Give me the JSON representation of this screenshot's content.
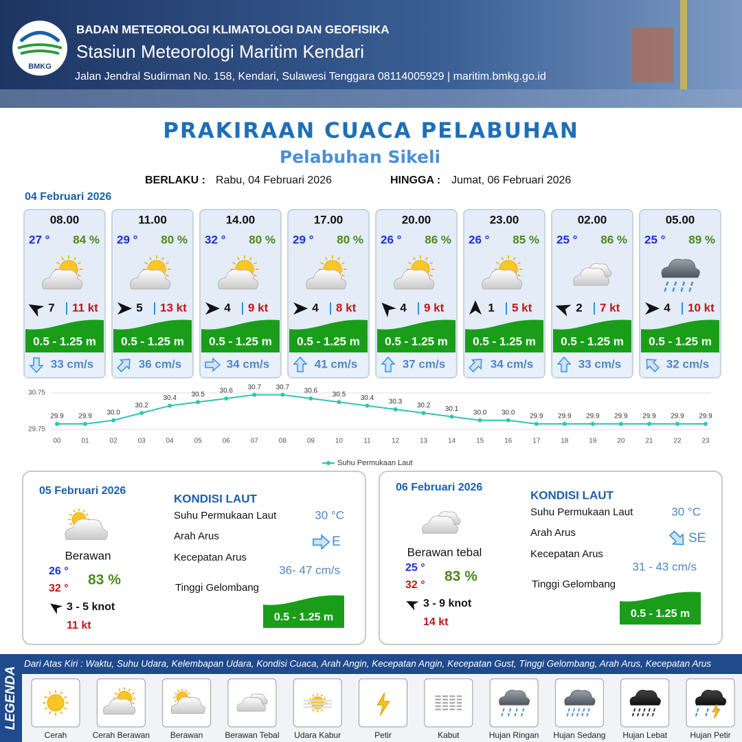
{
  "header": {
    "logo": "BMKG",
    "agency": "BADAN METEOROLOGI KLIMATOLOGI DAN GEOFISIKA",
    "station": "Stasiun Meteorologi Maritim Kendari",
    "address": "Jalan Jendral Sudirman No. 158, Kendari, Sulawesi Tenggara  08114005929 | maritim.bmkg.go.id"
  },
  "title": "PRAKIRAAN CUACA PELABUHAN",
  "subtitle": "Pelabuhan Sikeli",
  "validity": {
    "from_label": "BERLAKU :",
    "from": "Rabu, 04 Februari 2026",
    "to_label": "HINGGA :",
    "to": "Jumat, 06 Februari 2026"
  },
  "forecast": {
    "date": "04 Februari 2026",
    "slots": [
      {
        "time": "08.00",
        "temp": "27 °",
        "humidity": "84 %",
        "wind": "7",
        "gust": "11 kt",
        "wave": "0.5 - 1.25 m",
        "current": "33 cm/s"
      },
      {
        "time": "11.00",
        "temp": "29 °",
        "humidity": "80 %",
        "wind": "5",
        "gust": "13 kt",
        "wave": "0.5 - 1.25 m",
        "current": "36 cm/s"
      },
      {
        "time": "14.00",
        "temp": "32 °",
        "humidity": "80 %",
        "wind": "4",
        "gust": "9 kt",
        "wave": "0.5 - 1.25 m",
        "current": "34 cm/s"
      },
      {
        "time": "17.00",
        "temp": "29 °",
        "humidity": "80 %",
        "wind": "4",
        "gust": "8 kt",
        "wave": "0.5 - 1.25 m",
        "current": "41 cm/s"
      },
      {
        "time": "20.00",
        "temp": "26 °",
        "humidity": "86 %",
        "wind": "4",
        "gust": "9 kt",
        "wave": "0.5 - 1.25 m",
        "current": "37 cm/s"
      },
      {
        "time": "23.00",
        "temp": "26 °",
        "humidity": "85 %",
        "wind": "1",
        "gust": "5 kt",
        "wave": "0.5 - 1.25 m",
        "current": "34 cm/s"
      },
      {
        "time": "02.00",
        "temp": "25 °",
        "humidity": "86 %",
        "wind": "2",
        "gust": "7 kt",
        "wave": "0.5 - 1.25 m",
        "current": "33 cm/s"
      },
      {
        "time": "05.00",
        "temp": "25 °",
        "humidity": "89 %",
        "wind": "4",
        "gust": "10 kt",
        "wave": "0.5 - 1.25 m",
        "current": "32 cm/s"
      }
    ]
  },
  "chart_data": {
    "type": "line",
    "categories": [
      "00",
      "01",
      "02",
      "03",
      "04",
      "05",
      "06",
      "07",
      "08",
      "09",
      "10",
      "11",
      "12",
      "13",
      "14",
      "15",
      "16",
      "17",
      "18",
      "19",
      "20",
      "21",
      "22",
      "23"
    ],
    "series": [
      {
        "name": "Suhu Permukaan Laut",
        "color": "#2ec4b6",
        "values": [
          29.9,
          29.9,
          30.0,
          30.2,
          30.4,
          30.5,
          30.6,
          30.7,
          30.7,
          30.6,
          30.5,
          30.4,
          30.3,
          30.2,
          30.1,
          30.0,
          30.0,
          29.9,
          29.9,
          29.9,
          29.9,
          29.9,
          29.9,
          29.9
        ],
        "value_labels": [
          "29.9",
          "29.9",
          "30.0",
          "30.2",
          "30.4",
          "30.5",
          "30.6",
          "30.7",
          "30.7",
          "30.6",
          "30.5",
          "30.4",
          "30.3",
          "30.2",
          "30.1",
          "30.0",
          "30.0",
          "29.9",
          "29.9",
          "29.9",
          "29.9",
          "29.9",
          "29.9",
          "29.9"
        ]
      }
    ],
    "ylim": [
      29.75,
      30.75
    ],
    "yticks": [
      29.75,
      30.75
    ],
    "grid": true,
    "legend": "bottom"
  },
  "days": [
    {
      "date": "05 Februari 2026",
      "heading": "KONDISI LAUT",
      "condition": "Berawan",
      "temp_min": "26 °",
      "temp_max": "32 °",
      "humidity": "83 %",
      "wind": "3  - 5 knot",
      "gust": "11 kt",
      "sst_label": "Suhu Permukaan Laut",
      "sst": "30 °C",
      "dir_label": "Arah Arus",
      "dir": "E",
      "speed_label": "Kecepatan Arus",
      "speed": "36- 47 cm/s",
      "wave_label": "Tinggi Gelombang",
      "wave": "0.5 - 1.25 m"
    },
    {
      "date": "06 Februari 2026",
      "heading": "KONDISI LAUT",
      "condition": "Berawan tebal",
      "temp_min": "25 °",
      "temp_max": "32 °",
      "humidity": "83 %",
      "wind": "3  - 9 knot",
      "gust": "14 kt",
      "sst_label": "Suhu Permukaan Laut",
      "sst": "30 °C",
      "dir_label": "Arah Arus",
      "dir": "SE",
      "speed_label": "Kecepatan Arus",
      "speed": "31 - 43 cm/s",
      "wave_label": "Tinggi Gelombang",
      "wave": "0.5 - 1.25 m"
    }
  ],
  "legend": {
    "title": "LEGENDA",
    "description": "Dari Atas Kiri : Waktu, Suhu Udara, Kelembapan Udara, Kondisi Cuaca, Arah Angin, Kecepatan Angin, Kecepatan Gust, Tinggi Gelombang, Arah Arus, Kecepatan Arus",
    "items": [
      "Cerah",
      "Cerah Berawan",
      "Berawan",
      "Berawan Tebal",
      "Udara Kabur",
      "Petir",
      "Kabut",
      "Hujan Ringan",
      "Hujan Sedang",
      "Hujan Lebat",
      "Hujan Petir"
    ]
  }
}
